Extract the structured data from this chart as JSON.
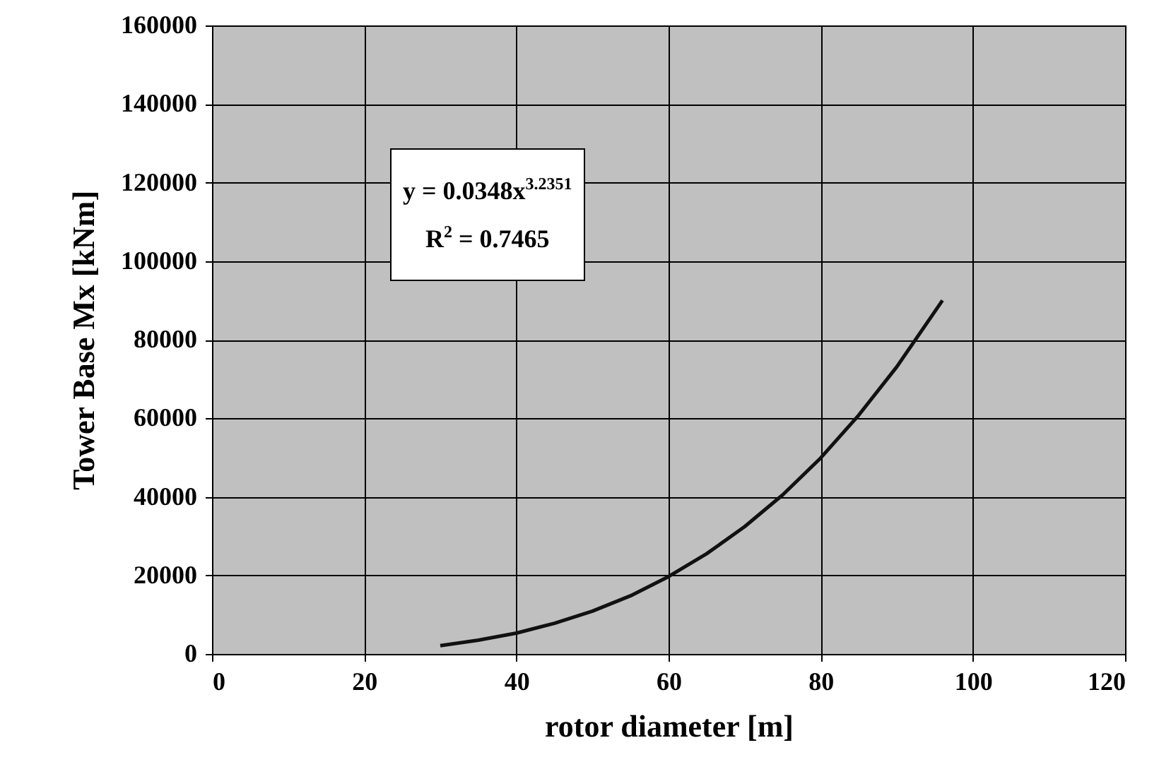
{
  "chart_data": {
    "type": "line",
    "xlabel": "rotor diameter [m]",
    "ylabel": "Tower Base Mx [kNm]",
    "x": [
      30,
      35,
      40,
      45,
      50,
      55,
      60,
      65,
      70,
      75,
      80,
      85,
      90,
      96
    ],
    "series": [
      {
        "color": "#111111",
        "values": [
          2100,
          3500,
          5300,
          7800,
          10900,
          14800,
          19700,
          25500,
          32400,
          40500,
          49900,
          60800,
          73100,
          90000
        ]
      }
    ],
    "xlim": [
      0,
      120
    ],
    "xticks": [
      0,
      20,
      40,
      60,
      80,
      100,
      120
    ],
    "ylim": [
      0,
      160000
    ],
    "yticks": [
      0,
      20000,
      40000,
      60000,
      80000,
      100000,
      120000,
      140000,
      160000
    ],
    "grid": true,
    "marker": "none",
    "line_style": "solid",
    "annotations": [
      "y = 0.0348x$^{3.2351}$",
      "R$^{2}$ = 0.7465"
    ]
  }
}
